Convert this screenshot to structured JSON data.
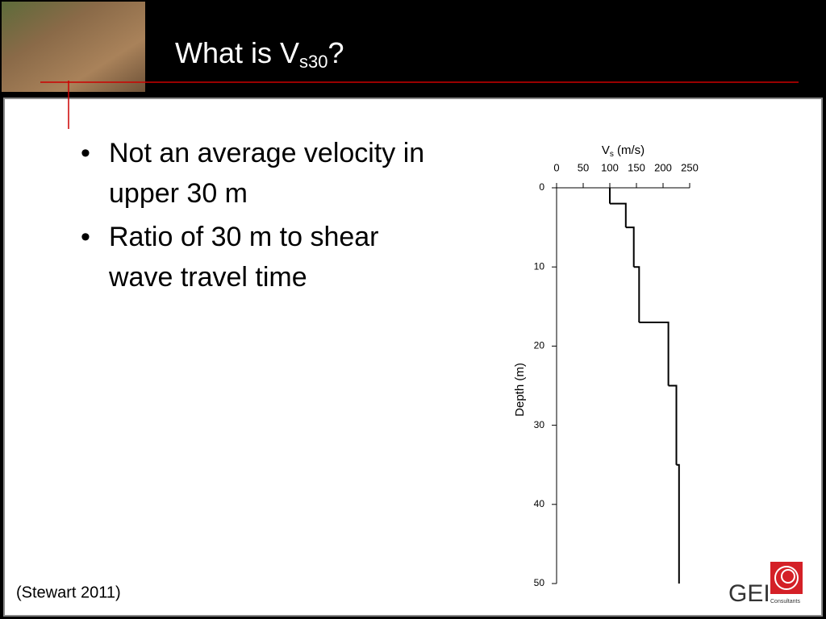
{
  "slide": {
    "title": {
      "main": "What is V",
      "sub": "s30",
      "rest": "?"
    },
    "bullets": [
      "Not an average velocity in upper 30 m",
      "Ratio of 30 m to shear wave travel time"
    ],
    "citation": "(Stewart 2011)",
    "logo": {
      "name": "GEI",
      "tagline": "Consultants"
    }
  },
  "chart_data": {
    "type": "step",
    "xlabel": {
      "main": "V",
      "sub": "s",
      "rest": " (m/s)"
    },
    "ylabel": "Depth (m)",
    "values": [
      100,
      130,
      145,
      155,
      210,
      225,
      230
    ],
    "depths": [
      0,
      2,
      5,
      10,
      17,
      25,
      35,
      50
    ],
    "xlim": [
      0,
      250
    ],
    "xticks": [
      0,
      50,
      100,
      150,
      200,
      250
    ],
    "ylim": [
      0,
      50
    ],
    "yticks": [
      0,
      10,
      20,
      30,
      40,
      50
    ],
    "y_inverted": true,
    "color": "#000000"
  }
}
